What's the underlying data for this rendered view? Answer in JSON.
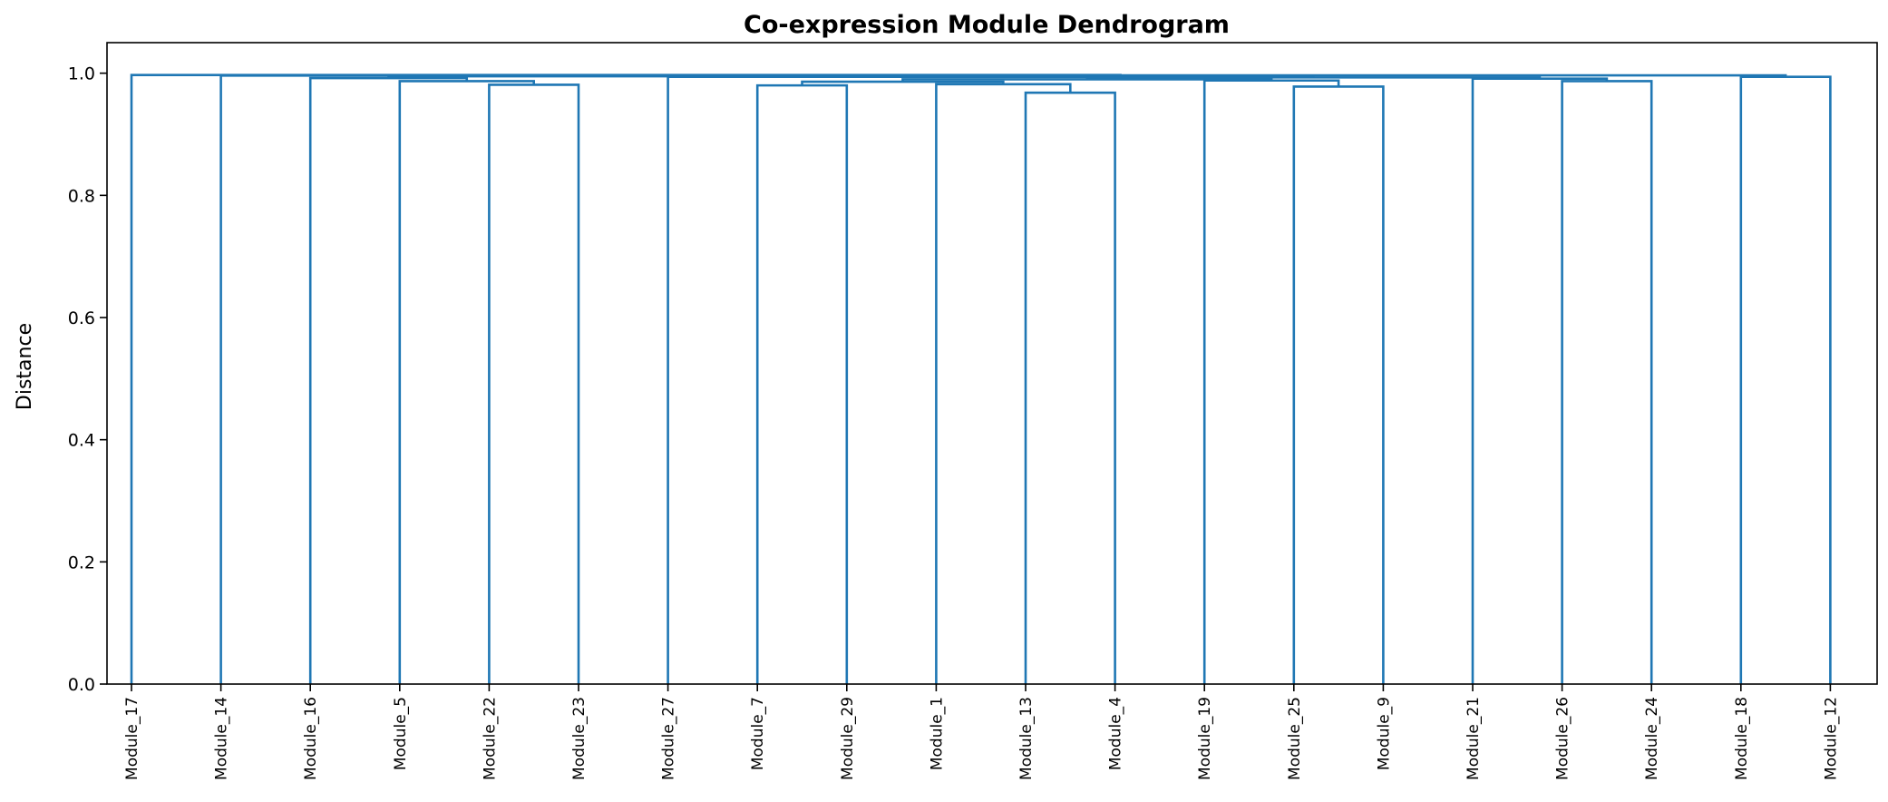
{
  "chart_data": {
    "type": "dendrogram",
    "title": "Co-expression Module Dendrogram",
    "xlabel": "",
    "ylabel": "Distance",
    "ylim": [
      0,
      1.05
    ],
    "yticks": [
      "0.0",
      "0.2",
      "0.4",
      "0.6",
      "0.8",
      "1.0"
    ],
    "link_color": "#1f77b4",
    "grid": false,
    "leaves": [
      "Module_17",
      "Module_14",
      "Module_16",
      "Module_5",
      "Module_22",
      "Module_23",
      "Module_27",
      "Module_7",
      "Module_29",
      "Module_1",
      "Module_13",
      "Module_4",
      "Module_19",
      "Module_25",
      "Module_9",
      "Module_21",
      "Module_26",
      "Module_24",
      "Module_18",
      "Module_12"
    ],
    "merges": [
      {
        "left": "Module_13",
        "right": "Module_4",
        "height": 0.968
      },
      {
        "left": "Module_25",
        "right": "Module_9",
        "height": 0.978
      },
      {
        "left": "Module_7",
        "right": "Module_29",
        "height": 0.98
      },
      {
        "left": "Module_22",
        "right": "Module_23",
        "height": 0.981
      },
      {
        "left": "Module_1",
        "right": "Module_13+Module_4",
        "height": 0.982
      },
      {
        "left": "Module_7+Module_29",
        "right": "Module_1+Module_13+Module_4",
        "height": 0.986
      },
      {
        "left": "Module_5",
        "right": "Module_22+Module_23",
        "height": 0.987
      },
      {
        "left": "Module_26",
        "right": "Module_24",
        "height": 0.987
      },
      {
        "left": "Module_19",
        "right": "Module_25+Module_9",
        "height": 0.988
      },
      {
        "left": "Module_7…Module_4",
        "right": "Module_19…Module_9",
        "height": 0.99
      },
      {
        "left": "Module_21",
        "right": "Module_26+Module_24",
        "height": 0.991
      },
      {
        "left": "Module_16",
        "right": "Module_5…Module_23",
        "height": 0.992
      },
      {
        "left": "Module_7…Module_9",
        "right": "Module_21…Module_24",
        "height": 0.993
      },
      {
        "left": "Module_27",
        "right": "Module_7…Module_24",
        "height": 0.994
      },
      {
        "left": "Module_18",
        "right": "Module_12",
        "height": 0.994
      },
      {
        "left": "Module_16…Module_23",
        "right": "Module_27…Module_24",
        "height": 0.995
      },
      {
        "left": "Module_14",
        "right": "Module_16…Module_24",
        "height": 0.996
      },
      {
        "left": "Module_14…Module_24",
        "right": "Module_18+Module_12",
        "height": 0.9965
      },
      {
        "left": "Module_17",
        "right": "Module_14…Module_12",
        "height": 0.997
      }
    ]
  }
}
